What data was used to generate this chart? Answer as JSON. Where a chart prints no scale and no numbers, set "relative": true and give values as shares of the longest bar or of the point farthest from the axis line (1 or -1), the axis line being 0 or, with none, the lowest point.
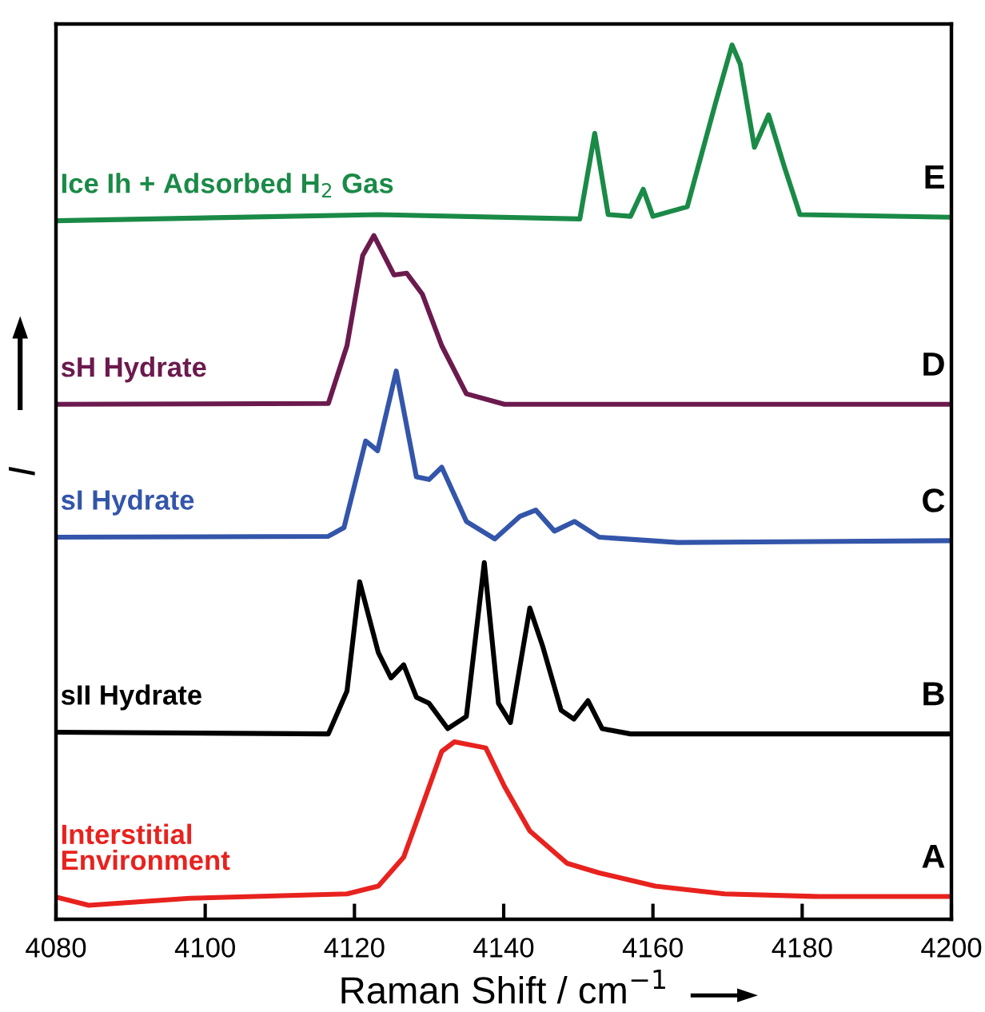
{
  "chart_data": {
    "type": "line",
    "relative": true,
    "xlabel": "Raman Shift / cm$^{−1}$",
    "ylabel": "I",
    "xlim": [
      4080,
      4200
    ],
    "xticks": [
      4080,
      4100,
      4120,
      4140,
      4160,
      4180,
      4200
    ],
    "grid": false,
    "legend": false,
    "marker": "none",
    "line_style": "solid",
    "series": [
      {
        "name": "Ice Ih + Adsorbed H$_{2}$ Gas",
        "color": "#1a8a47",
        "x": [
          4080.2,
          4123.2,
          4150.2,
          4152.2,
          4154,
          4157,
          4158.7,
          4160,
          4164.6,
          4168.4,
          4170.6,
          4171.7,
          4173.6,
          4175.5,
          4177.6,
          4179.7,
          4199.6
        ],
        "values": [
          0.799,
          0.806,
          0.801,
          0.899,
          0.806,
          0.804,
          0.835,
          0.804,
          0.815,
          0.934,
          1.0,
          0.978,
          0.883,
          0.92,
          0.861,
          0.806,
          0.803
        ]
      },
      {
        "name": "sH Hydrate",
        "color": "#6b1a4e",
        "x": [
          4080.2,
          4116.5,
          4119,
          4121.1,
          4122.6,
          4125.3,
          4127,
          4129.1,
          4131.7,
          4135,
          4140.1,
          4199.6
        ],
        "values": [
          0.589,
          0.59,
          0.656,
          0.759,
          0.782,
          0.737,
          0.739,
          0.715,
          0.656,
          0.601,
          0.589,
          0.589
        ]
      },
      {
        "name": "sI Hydrate",
        "color": "#3355aa",
        "x": [
          4080.2,
          4116.5,
          4118.6,
          4121.5,
          4123.1,
          4125.6,
          4128.3,
          4130,
          4131.7,
          4135,
          4138.8,
          4142.2,
          4144.3,
          4146.8,
          4149.5,
          4152.8,
          4163.3,
          4199.6
        ],
        "values": [
          0.437,
          0.438,
          0.448,
          0.547,
          0.536,
          0.627,
          0.506,
          0.503,
          0.517,
          0.455,
          0.435,
          0.461,
          0.468,
          0.444,
          0.455,
          0.437,
          0.431,
          0.433
        ]
      },
      {
        "name": "sII Hydrate",
        "color": "#000000",
        "x": [
          4080.2,
          4116.5,
          4119,
          4120.7,
          4123.2,
          4124.9,
          4126.6,
          4128.3,
          4130,
          4132.5,
          4135,
          4137.4,
          4139.3,
          4140.9,
          4143.5,
          4145.2,
          4147.7,
          4149.4,
          4151.3,
          4153.2,
          4157,
          4199.6
        ],
        "values": [
          0.214,
          0.212,
          0.261,
          0.386,
          0.305,
          0.276,
          0.291,
          0.254,
          0.247,
          0.218,
          0.232,
          0.408,
          0.247,
          0.225,
          0.356,
          0.313,
          0.239,
          0.229,
          0.25,
          0.218,
          0.212,
          0.212
        ]
      },
      {
        "name": "Interstitial\nEnvironment",
        "color": "#e8221e",
        "x": [
          4080.2,
          4084.4,
          4097.9,
          4119,
          4123.2,
          4126.6,
          4129.1,
          4131.7,
          4133.4,
          4137.6,
          4140.1,
          4143.5,
          4148.5,
          4152.8,
          4160.3,
          4169.6,
          4182.3,
          4199.6
        ],
        "values": [
          0.025,
          0.016,
          0.024,
          0.029,
          0.038,
          0.071,
          0.13,
          0.192,
          0.203,
          0.196,
          0.152,
          0.101,
          0.064,
          0.053,
          0.038,
          0.029,
          0.026,
          0.026
        ]
      }
    ],
    "annotations": [
      "E",
      "D",
      "C",
      "B",
      "A"
    ]
  }
}
